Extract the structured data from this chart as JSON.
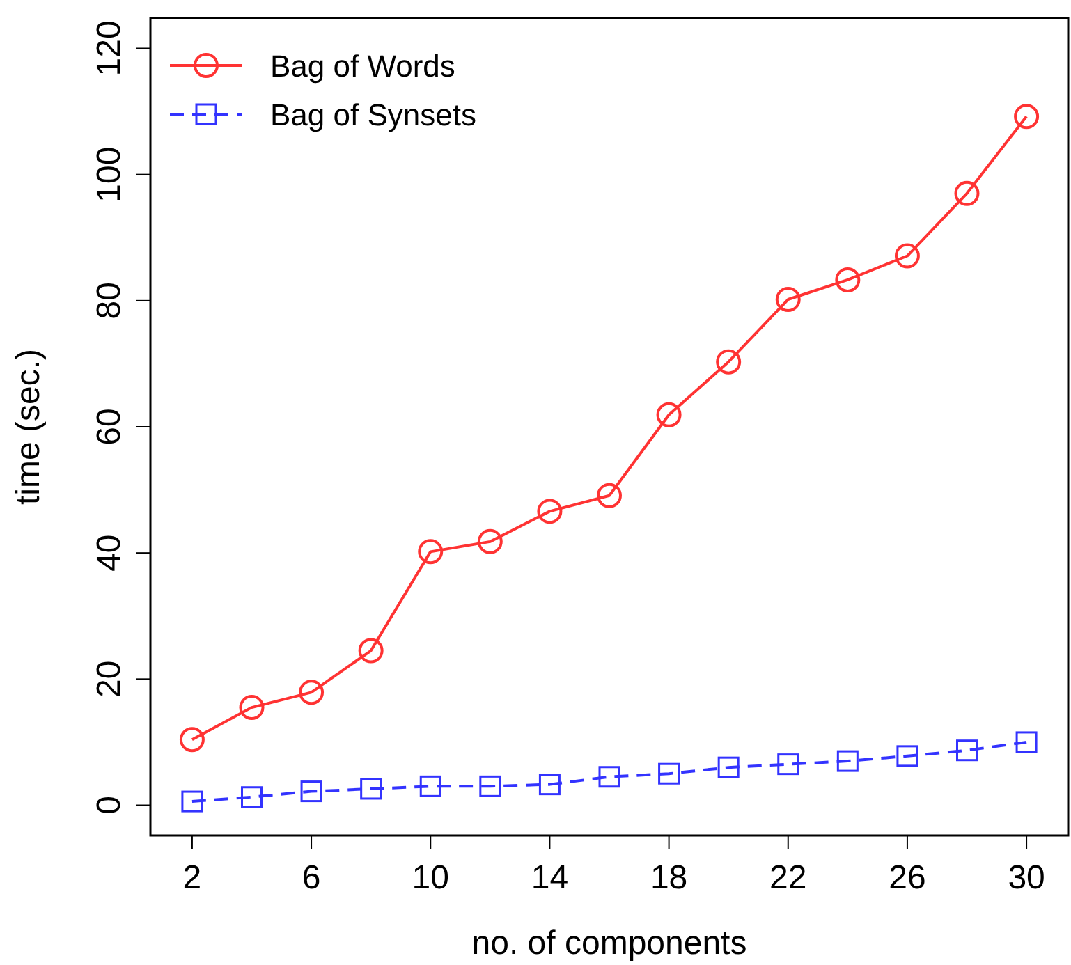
{
  "chart_data": {
    "type": "line",
    "xlabel": "no. of components",
    "ylabel": "time (sec.)",
    "x": [
      2,
      4,
      6,
      8,
      10,
      12,
      14,
      16,
      18,
      20,
      22,
      24,
      26,
      28,
      30
    ],
    "series": [
      {
        "name": "Bag of Words",
        "color": "#ff3333",
        "marker": "circle",
        "line_style": "solid",
        "values": [
          10.4,
          15.5,
          17.9,
          24.5,
          40.2,
          41.8,
          46.6,
          49.1,
          61.9,
          70.3,
          80.2,
          83.3,
          87.1,
          97,
          109.2
        ]
      },
      {
        "name": "Bag of Synsets",
        "color": "#3333ff",
        "marker": "square",
        "line_style": "dashed",
        "values": [
          0.6,
          1.3,
          2.2,
          2.6,
          3,
          3,
          3.3,
          4.5,
          5,
          6,
          6.5,
          7,
          7.8,
          8.7,
          10
        ]
      }
    ],
    "xlim": [
      0.6,
      31.4
    ],
    "ylim": [
      -4.8,
      124.8
    ],
    "xticks": [
      2,
      6,
      10,
      14,
      18,
      22,
      26,
      30
    ],
    "yticks": [
      0,
      20,
      40,
      60,
      80,
      100,
      120
    ],
    "legend": "top left",
    "grid": false
  }
}
